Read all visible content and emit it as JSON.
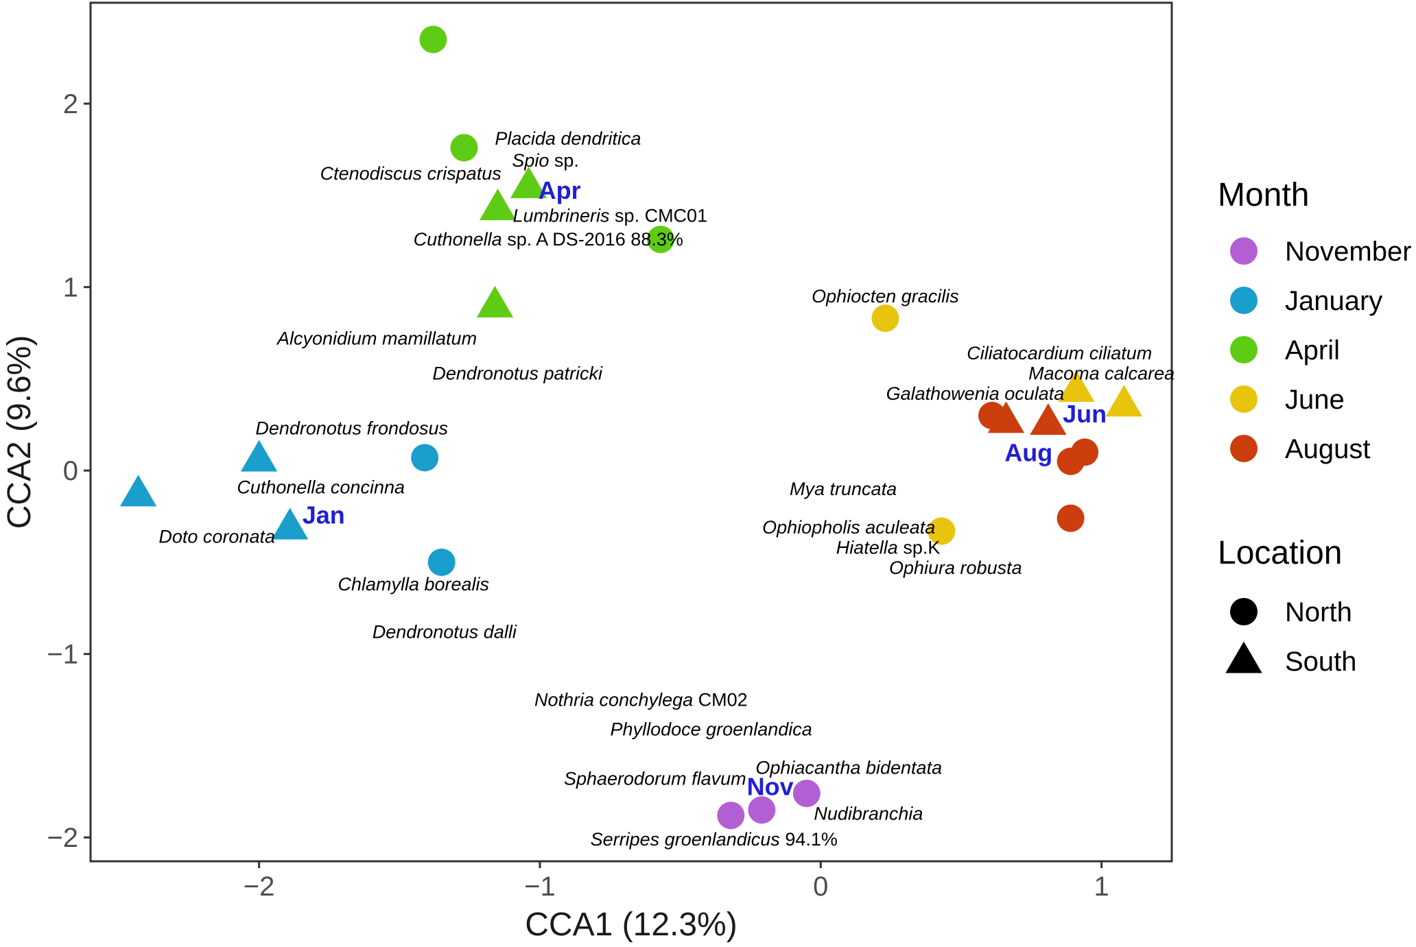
{
  "chart_data": {
    "type": "scatter",
    "xlabel": "CCA1 (12.3%)",
    "ylabel": "CCA2 (9.6%)",
    "xlim": [
      -2.6,
      1.25
    ],
    "ylim": [
      -2.13,
      2.55
    ],
    "x_ticks": [
      {
        "value": -2,
        "label": "−2"
      },
      {
        "value": -1,
        "label": "−1"
      },
      {
        "value": 0,
        "label": "0"
      },
      {
        "value": 1,
        "label": "1"
      }
    ],
    "y_ticks": [
      {
        "value": -2,
        "label": "−2"
      },
      {
        "value": -1,
        "label": "−1"
      },
      {
        "value": 0,
        "label": "0"
      },
      {
        "value": 1,
        "label": "1"
      },
      {
        "value": 2,
        "label": "2"
      }
    ],
    "grid": false,
    "month_colors": {
      "November": "#B35FD4",
      "January": "#1A9ECB",
      "April": "#5ECC14",
      "June": "#E8C40F",
      "August": "#CC3E0E"
    },
    "label_color": "#1F1FD6",
    "legend_position": "right",
    "legend": {
      "month_title": "Month",
      "months": [
        "November",
        "January",
        "April",
        "June",
        "August"
      ],
      "location_title": "Location",
      "locations": [
        {
          "name": "North",
          "shape": "circle"
        },
        {
          "name": "South",
          "shape": "triangle"
        }
      ]
    },
    "points": [
      {
        "month": "April",
        "location": "North",
        "x": -1.38,
        "y": 2.35
      },
      {
        "month": "April",
        "location": "North",
        "x": -1.27,
        "y": 1.76
      },
      {
        "month": "April",
        "location": "South",
        "x": -1.04,
        "y": 1.55
      },
      {
        "month": "April",
        "location": "South",
        "x": -1.15,
        "y": 1.43
      },
      {
        "month": "April",
        "location": "North",
        "x": -0.57,
        "y": 1.26
      },
      {
        "month": "April",
        "location": "South",
        "x": -1.16,
        "y": 0.9
      },
      {
        "month": "January",
        "location": "South",
        "x": -2.0,
        "y": 0.06
      },
      {
        "month": "January",
        "location": "North",
        "x": -1.41,
        "y": 0.07
      },
      {
        "month": "January",
        "location": "South",
        "x": -2.43,
        "y": -0.13
      },
      {
        "month": "January",
        "location": "South",
        "x": -1.89,
        "y": -0.31
      },
      {
        "month": "January",
        "location": "North",
        "x": -1.35,
        "y": -0.5
      },
      {
        "month": "June",
        "location": "North",
        "x": 0.23,
        "y": 0.83
      },
      {
        "month": "June",
        "location": "South",
        "x": 0.91,
        "y": 0.44
      },
      {
        "month": "June",
        "location": "South",
        "x": 1.08,
        "y": 0.36
      },
      {
        "month": "June",
        "location": "North",
        "x": 0.43,
        "y": -0.33
      },
      {
        "month": "August",
        "location": "North",
        "x": 0.61,
        "y": 0.3
      },
      {
        "month": "August",
        "location": "South",
        "x": 0.66,
        "y": 0.27
      },
      {
        "month": "August",
        "location": "South",
        "x": 0.81,
        "y": 0.26
      },
      {
        "month": "August",
        "location": "North",
        "x": 0.94,
        "y": 0.1
      },
      {
        "month": "August",
        "location": "North",
        "x": 0.89,
        "y": 0.05
      },
      {
        "month": "August",
        "location": "North",
        "x": 0.89,
        "y": -0.26
      },
      {
        "month": "November",
        "location": "North",
        "x": -0.05,
        "y": -1.76
      },
      {
        "month": "November",
        "location": "North",
        "x": -0.21,
        "y": -1.85
      },
      {
        "month": "November",
        "location": "North",
        "x": -0.32,
        "y": -1.88
      }
    ],
    "month_labels": [
      {
        "text": "Apr",
        "month": "April",
        "x": -0.93,
        "y": 1.53
      },
      {
        "text": "Jan",
        "month": "January",
        "x": -1.77,
        "y": -0.24
      },
      {
        "text": "Jun",
        "month": "June",
        "x": 0.94,
        "y": 0.31
      },
      {
        "text": "Aug",
        "month": "August",
        "x": 0.74,
        "y": 0.1
      },
      {
        "text": "Nov",
        "month": "November",
        "x": -0.18,
        "y": -1.72
      }
    ],
    "species": [
      {
        "italic": "Placida dendritica",
        "plain": "",
        "x": -0.9,
        "y": 1.81
      },
      {
        "italic": "Spio",
        "plain": " sp.",
        "x": -0.98,
        "y": 1.69
      },
      {
        "italic": "Ctenodiscus crispatus",
        "plain": "",
        "x": -1.46,
        "y": 1.62
      },
      {
        "italic": "Lumbrineris",
        "plain": " sp. CMC01",
        "x": -0.75,
        "y": 1.39
      },
      {
        "italic": "Cuthonella",
        "plain": " sp. A DS-2016 88.3%",
        "x": -0.97,
        "y": 1.26
      },
      {
        "italic": "Ophiocten gracilis",
        "plain": "",
        "x": 0.23,
        "y": 0.95
      },
      {
        "italic": "Alcyonidium mamillatum",
        "plain": "",
        "x": -1.58,
        "y": 0.72
      },
      {
        "italic": "Ciliatocardium ciliatum",
        "plain": "",
        "x": 0.85,
        "y": 0.64
      },
      {
        "italic": "Dendronotus patricki",
        "plain": "",
        "x": -1.08,
        "y": 0.53
      },
      {
        "italic": "Macoma calcarea",
        "plain": "",
        "x": 1.0,
        "y": 0.53
      },
      {
        "italic": "Galathowenia oculata",
        "plain": "",
        "x": 0.55,
        "y": 0.42
      },
      {
        "italic": "Dendronotus frondosus",
        "plain": "",
        "x": -1.67,
        "y": 0.23
      },
      {
        "italic": "Cuthonella concinna",
        "plain": "",
        "x": -1.78,
        "y": -0.09
      },
      {
        "italic": "Mya truncata",
        "plain": "",
        "x": 0.08,
        "y": -0.1
      },
      {
        "italic": "Ophiopholis aculeata",
        "plain": "",
        "x": 0.1,
        "y": -0.31
      },
      {
        "italic": "Doto coronata",
        "plain": "",
        "x": -2.15,
        "y": -0.36
      },
      {
        "italic": "Hiatella",
        "plain": " sp.K",
        "x": 0.24,
        "y": -0.42
      },
      {
        "italic": "Ophiura robusta",
        "plain": "",
        "x": 0.48,
        "y": -0.53
      },
      {
        "italic": "Chlamylla borealis",
        "plain": "",
        "x": -1.45,
        "y": -0.62
      },
      {
        "italic": "Dendronotus dalli",
        "plain": "",
        "x": -1.34,
        "y": -0.88
      },
      {
        "italic": "Nothria conchylega",
        "plain": " CM02",
        "x": -0.64,
        "y": -1.25
      },
      {
        "italic": "Phyllodoce groenlandica",
        "plain": "",
        "x": -0.39,
        "y": -1.41
      },
      {
        "italic": "Ophiacantha bidentata",
        "plain": "",
        "x": 0.1,
        "y": -1.62
      },
      {
        "italic": "Sphaerodorum flavum",
        "plain": "",
        "x": -0.59,
        "y": -1.68
      },
      {
        "italic": "Nudibranchia",
        "plain": "",
        "x": 0.17,
        "y": -1.87
      },
      {
        "italic": "Serripes groenlandicus",
        "plain": " 94.1%",
        "x": -0.38,
        "y": -2.01
      }
    ]
  }
}
